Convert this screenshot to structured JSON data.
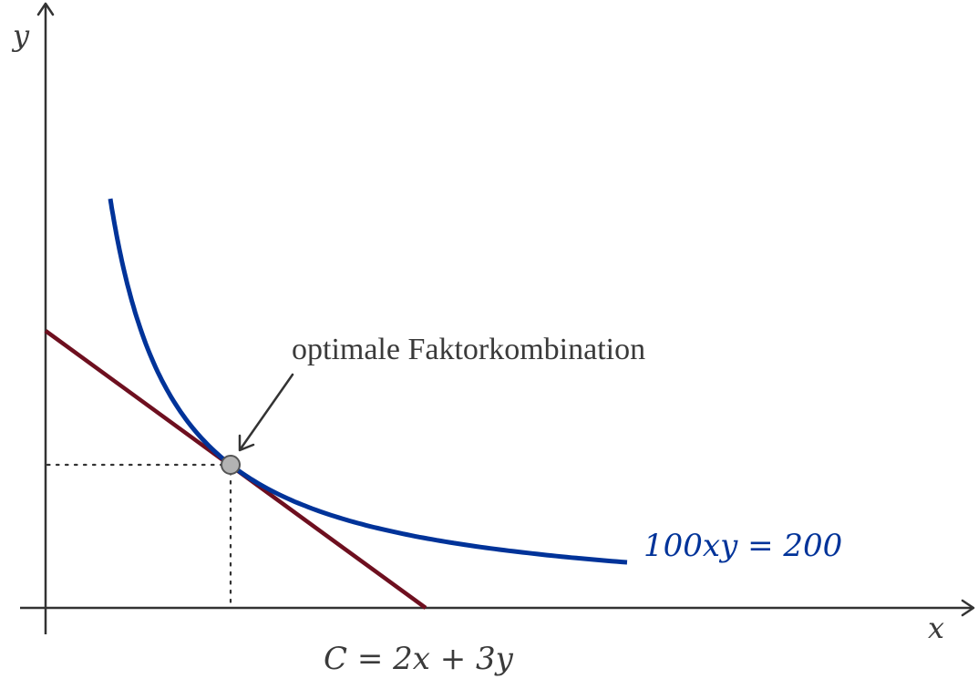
{
  "colors": {
    "axis": "#333333",
    "curve": "#003399",
    "line": "#6e0f1f",
    "point_fill": "#b3b3b3",
    "point_stroke": "#555555",
    "guide": "#333333",
    "text": "#3a3a3a"
  },
  "axes": {
    "x_label": "x",
    "y_label": "y"
  },
  "curve": {
    "label": "100xy = 200",
    "equation_product": 2
  },
  "line": {
    "label": "C = 2x + 3y"
  },
  "point": {
    "annotation": "optimale Faktorkombination",
    "name": "optimal-point"
  }
}
